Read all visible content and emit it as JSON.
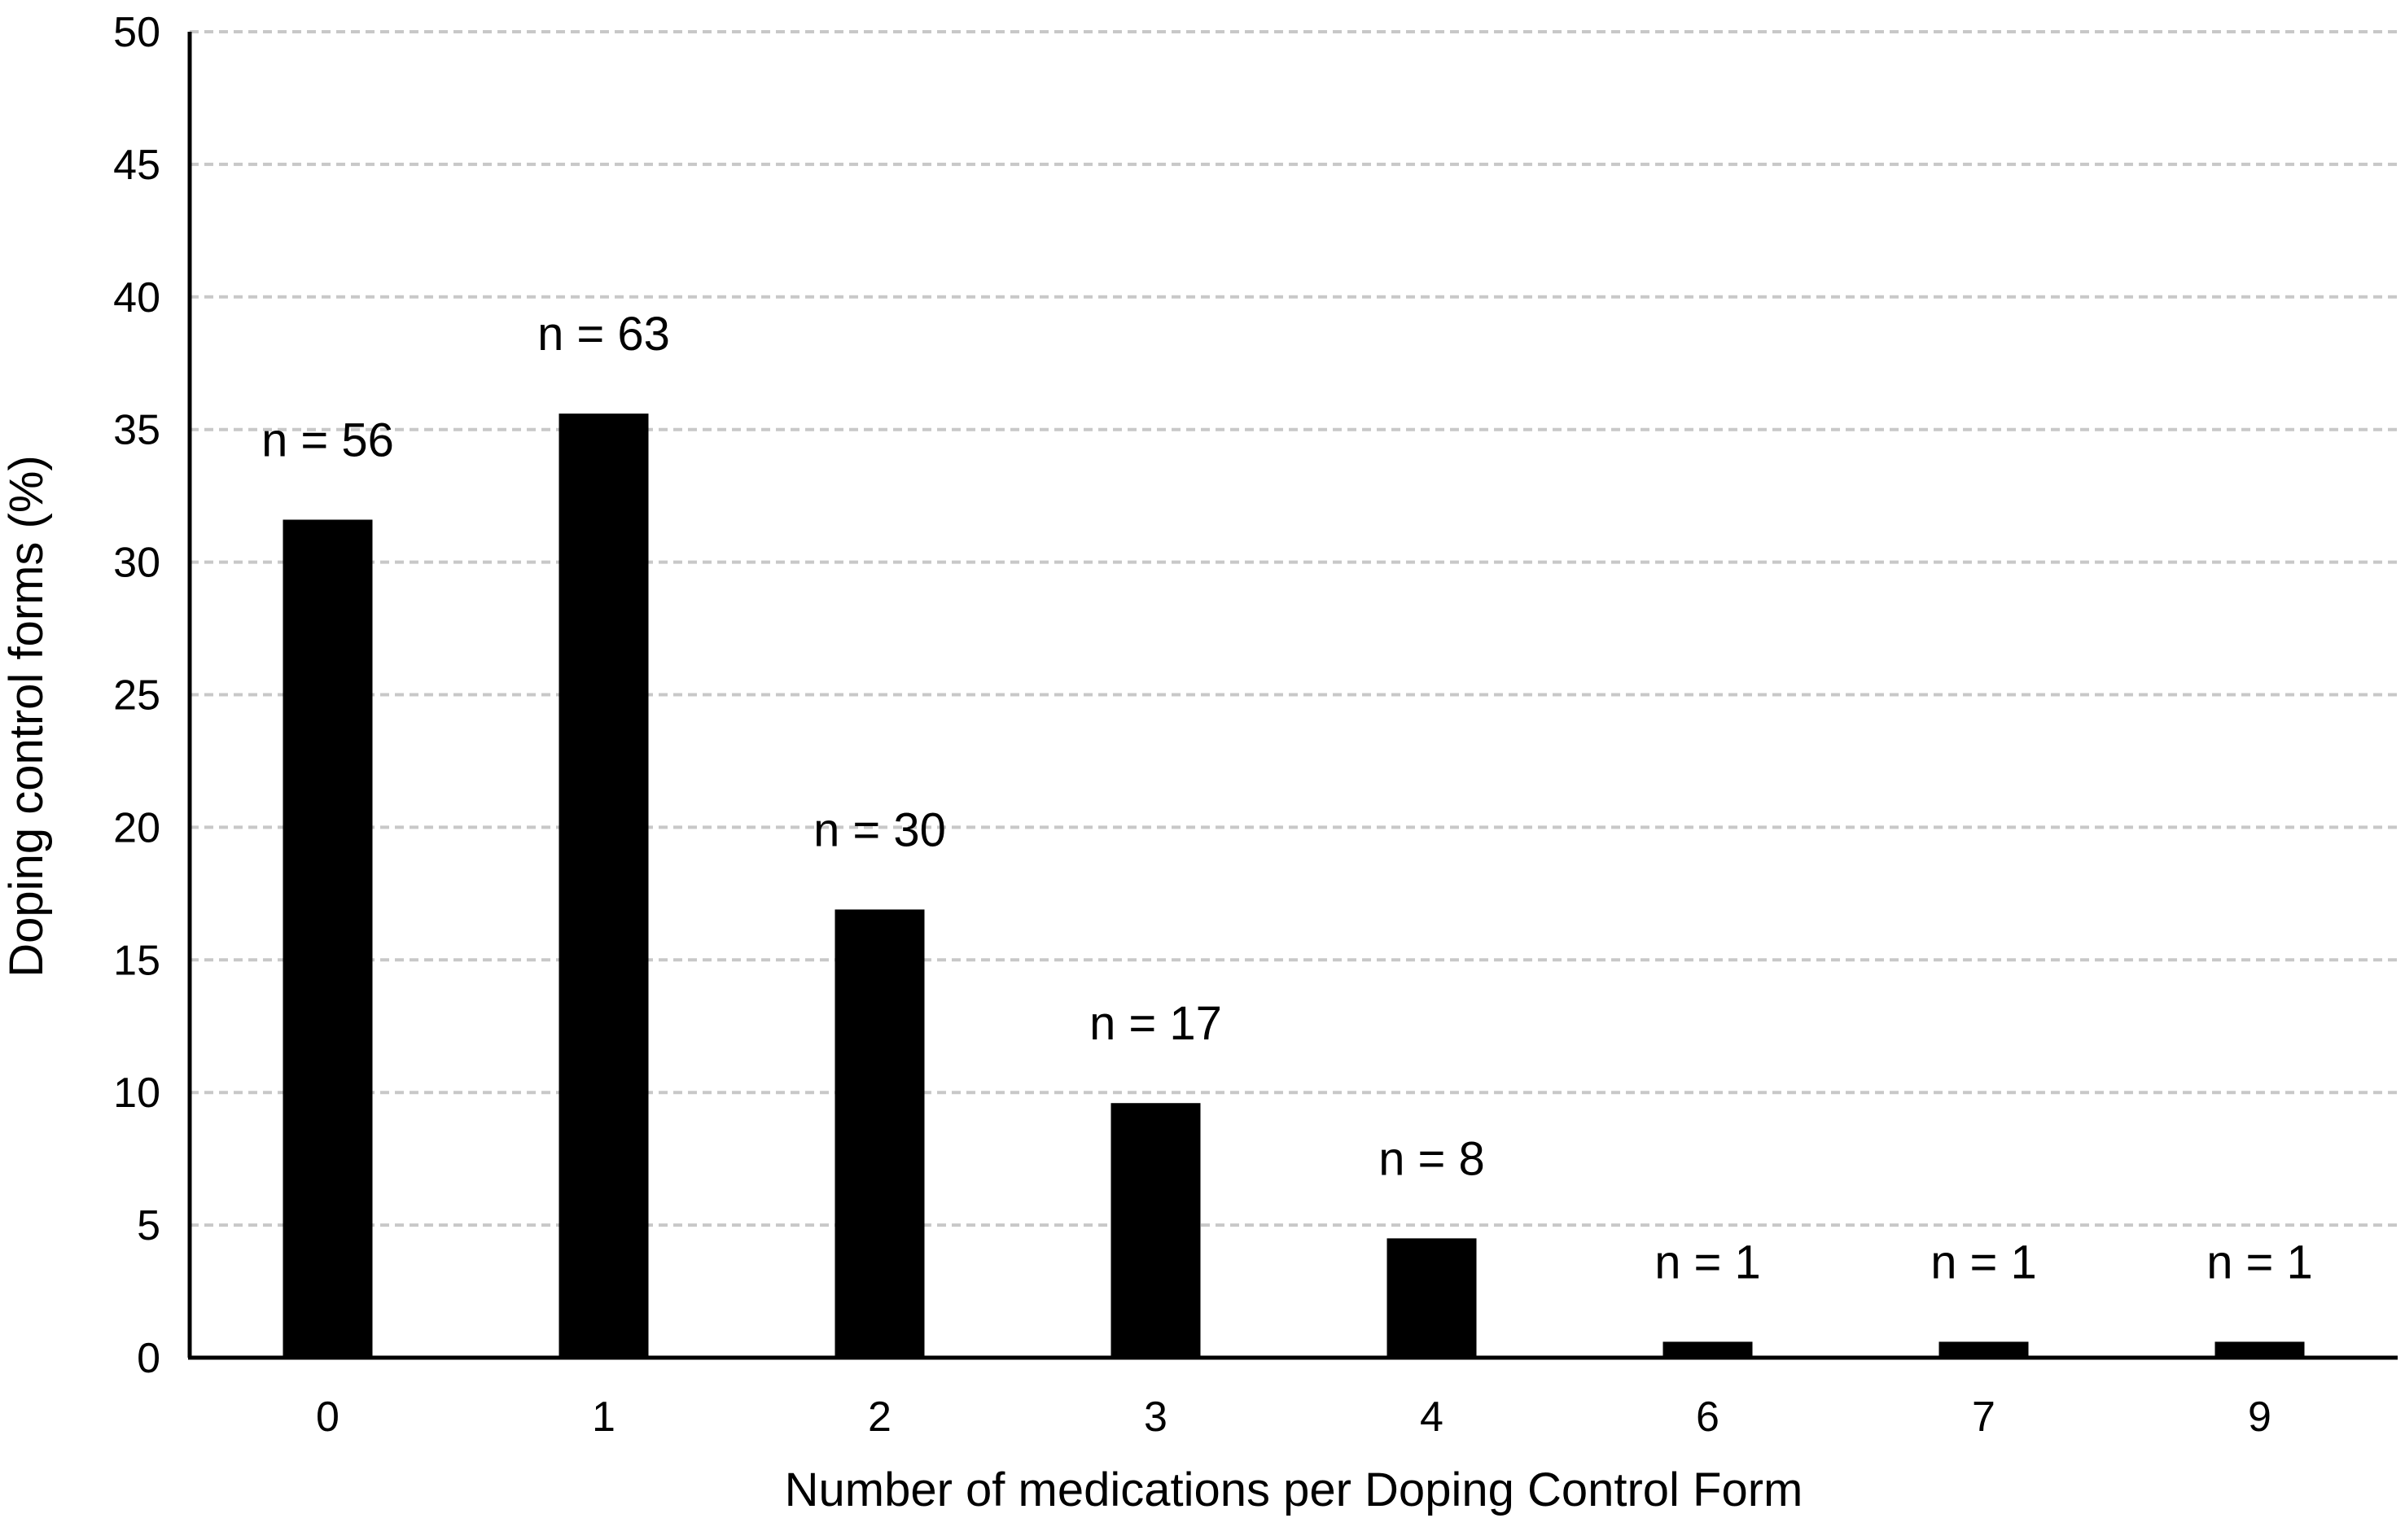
{
  "chart_data": {
    "type": "bar",
    "title": "",
    "xlabel": "Number of medications per Doping Control Form",
    "ylabel": "Doping control forms (%)",
    "categories": [
      "0",
      "1",
      "2",
      "3",
      "4",
      "6",
      "7",
      "9"
    ],
    "series": [
      {
        "name": "Doping control forms (%)",
        "values": [
          31.6,
          35.6,
          16.9,
          9.6,
          4.5,
          0.6,
          0.6,
          0.6
        ],
        "counts": [
          56,
          63,
          30,
          17,
          8,
          1,
          1,
          1
        ],
        "data_labels": [
          "n = 56",
          "n = 63",
          "n = 30",
          "n = 17",
          "n = 8",
          "n = 1",
          "n = 1",
          "n = 1"
        ]
      }
    ],
    "ylim": [
      0,
      50
    ],
    "yticks": [
      0,
      5,
      10,
      15,
      20,
      25,
      30,
      35,
      40,
      45,
      50
    ],
    "grid": "horizontal-dashed",
    "legend_position": "none",
    "bar_color": "#000000",
    "axis_color": "#000000",
    "gridline_color": "#c8c8c8",
    "text_color": "#000000",
    "background_color": "#ffffff"
  }
}
